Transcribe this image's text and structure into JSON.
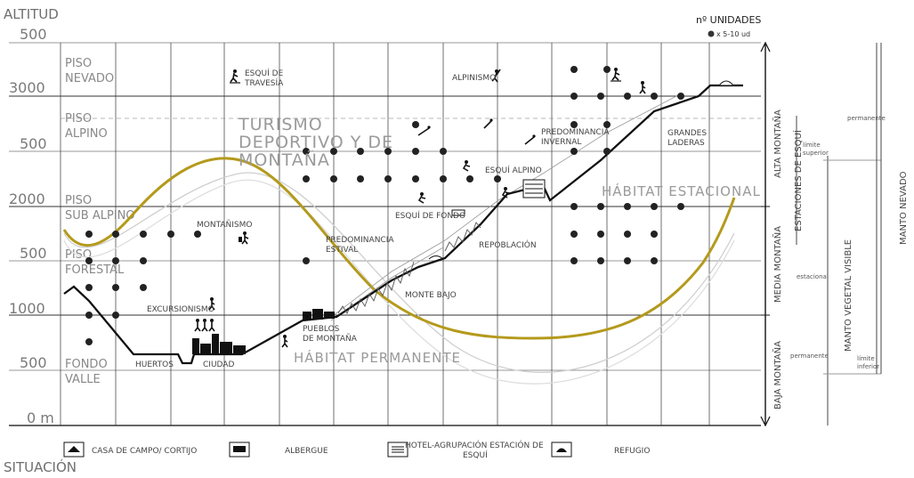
{
  "axes": {
    "y_title": "ALTITUD",
    "x_title": "SITUACIÓN",
    "y_ticks": [
      "500",
      "3000",
      "500",
      "2000",
      "500",
      "1000",
      "500",
      "0 m"
    ]
  },
  "legend_top": {
    "title": "nº UNIDADES",
    "dot_label": "x 5-10 ud"
  },
  "zones": {
    "piso_nevado": [
      "PISO",
      "NEVADO"
    ],
    "piso_alpino": [
      "PISO",
      "ALPINO"
    ],
    "piso_subalpino": [
      "PISO",
      "SUB ALPINO"
    ],
    "piso_forestal": [
      "PISO",
      "FORESTAL"
    ],
    "fondo_valle": [
      "FONDO",
      "VALLE"
    ]
  },
  "titles": {
    "turismo": [
      "TURISMO",
      "DEPORTIVO Y DE",
      "MONTAÑA"
    ],
    "habitat_estacional": "HÁBITAT ESTACIONAL",
    "habitat_permanente": "HÁBITAT PERMANENTE"
  },
  "labels": {
    "esqui_travesia": [
      "ESQUÍ DE",
      "TRAVESÍA"
    ],
    "alpinismo": "ALPINISMO",
    "predom_invernal": [
      "PREDOMINANCIA",
      "INVERNAL"
    ],
    "grandes_laderas": [
      "GRANDES",
      "LADERAS"
    ],
    "esqui_alpino": "ESQUÍ ALPINO",
    "esqui_fondo": "ESQUÍ DE FONDO",
    "repoblacion": "REPOBLACIÓN",
    "montanismo": "MONTAÑISMO",
    "predom_estival": [
      "PREDOMINANCIA",
      "ESTIVAL"
    ],
    "monte_bajo": "MONTE BAJO",
    "excursionismo": "EXCURSIONISMO",
    "pueblos": [
      "PUEBLOS",
      "DE MONTAÑA"
    ],
    "huertos": "HUERTOS",
    "ciudad": "CIUDAD"
  },
  "side": {
    "alta_montana": "ALTA MONTAÑA",
    "media_montana": "MEDIA MONTAÑA",
    "baja_montana": "BAJA MONTAÑA",
    "estaciones_esqui": "ESTACIONES DE ESQUÍ",
    "manto_vegetal": "MANTO VEGETAL VISIBLE",
    "manto_nevado": "MANTO NEVADO",
    "permanente_top": "permanente",
    "limite_superior": [
      "límite",
      "superior"
    ],
    "estacional": "estacional",
    "permanente_low": "permanente",
    "limite_inferior": [
      "límite",
      "inferior"
    ]
  },
  "bottom_legend": {
    "casa": "CASA DE CAMPO/ CORTIJO",
    "albergue": "ALBERGUE",
    "hotel": [
      "HOTEL-AGRUPACIÓN ESTACIÓN DE",
      "ESQUÍ"
    ],
    "refugio": "REFUGIO"
  },
  "colors": {
    "gold_curve": "#b49a1c",
    "grey_curve": "#c8c8c8",
    "terrain": "#111111"
  }
}
